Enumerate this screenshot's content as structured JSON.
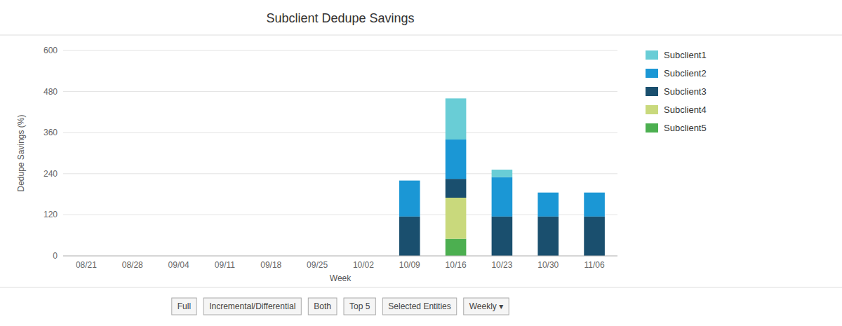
{
  "chart_data": {
    "type": "bar",
    "stacked": true,
    "title": "Subclient Dedupe Savings",
    "x_label": "Week",
    "y_label": "Dedupe Savings (%)",
    "categories": [
      "08/21",
      "08/28",
      "09/04",
      "09/11",
      "09/18",
      "09/25",
      "10/02",
      "10/09",
      "10/16",
      "10/23",
      "10/30",
      "11/06"
    ],
    "series": [
      {
        "name": "Subclient1",
        "color": "#69cdd6",
        "values": [
          0,
          0,
          0,
          0,
          0,
          0,
          0,
          0,
          120,
          22,
          0,
          0
        ]
      },
      {
        "name": "Subclient2",
        "color": "#1b97d5",
        "values": [
          0,
          0,
          0,
          0,
          0,
          0,
          0,
          105,
          115,
          115,
          70,
          70
        ]
      },
      {
        "name": "Subclient3",
        "color": "#1a4f6e",
        "values": [
          0,
          0,
          0,
          0,
          0,
          0,
          0,
          115,
          55,
          115,
          115,
          115
        ]
      },
      {
        "name": "Subclient4",
        "color": "#c9d97c",
        "values": [
          0,
          0,
          0,
          0,
          0,
          0,
          0,
          0,
          120,
          0,
          0,
          0
        ]
      },
      {
        "name": "Subclient5",
        "color": "#4caf50",
        "values": [
          0,
          0,
          0,
          0,
          0,
          0,
          0,
          0,
          50,
          0,
          0,
          0
        ]
      }
    ],
    "ylim": [
      0,
      600
    ],
    "yticks": [
      0,
      120,
      240,
      360,
      480,
      600
    ],
    "grid": true,
    "legend": "right",
    "annotations": [
      "Full",
      "Incremental/Differential",
      "Both",
      "Top 5",
      "Selected Entities",
      "Weekly  ▾"
    ]
  }
}
